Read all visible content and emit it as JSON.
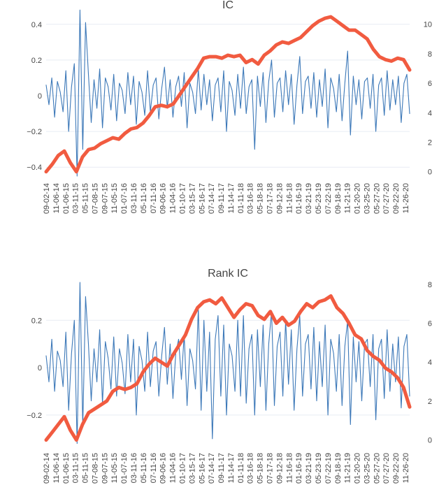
{
  "colors": {
    "ic_line": "#3c78b8",
    "cumulative_line": "#f15b40",
    "grid": "#e8ecf3",
    "text": "#444444"
  },
  "chart_data": [
    {
      "type": "line",
      "title": "IC",
      "xlabel": "",
      "ylabel": "",
      "x_tick_labels": [
        "09-02-14",
        "11-06-14",
        "01-06-15",
        "03-11-15",
        "05-11-15",
        "07-08-15",
        "09-07-15",
        "11-05-15",
        "01-07-16",
        "03-11-16",
        "05-11-16",
        "07-11-16",
        "09-06-16",
        "11-04-16",
        "01-10-17",
        "03-15-17",
        "05-16-17",
        "07-14-17",
        "09-11-17",
        "11-14-17",
        "01-11-18",
        "03-16-18",
        "05-18-18",
        "07-17-18",
        "09-12-18",
        "11-16-18",
        "01-16-19",
        "03-21-19",
        "05-23-19",
        "07-22-19",
        "09-18-19",
        "11-21-19",
        "01-20-20",
        "03-25-20",
        "05-27-20",
        "07-27-20",
        "09-22-20",
        "11-26-20"
      ],
      "ylim_left": [
        -0.45,
        0.45
      ],
      "yticks_left": [
        -0.4,
        -0.2,
        0,
        0.2,
        0.4
      ],
      "ytick_labels_left": [
        "−0.4",
        "−0.2",
        "0",
        "0.2",
        "0.4"
      ],
      "ylim_right": [
        -0.3,
        10.6
      ],
      "yticks_right": [
        0,
        2,
        4,
        6,
        8,
        10
      ],
      "ytick_labels_right": [
        "0",
        "2",
        "4",
        "6",
        "8",
        "10"
      ],
      "grid": true,
      "series": [
        {
          "axis": "left",
          "color": "#3c78b8",
          "note_values": "daily IC values, oscillating mostly within about -0.2 to 0.2",
          "peaks": [
            0.48,
            -0.45,
            0.41,
            -0.3,
            0.25
          ],
          "values": [
            0.06,
            -0.05,
            0.1,
            -0.12,
            0.08,
            0.02,
            -0.09,
            0.14,
            -0.2,
            0.05,
            0.18,
            -0.45,
            0.48,
            -0.3,
            0.41,
            0.12,
            -0.15,
            0.09,
            -0.07,
            0.15,
            -0.18,
            0.1,
            0.05,
            -0.08,
            0.12,
            -0.14,
            0.07,
            0.03,
            -0.1,
            0.13,
            -0.05,
            0.11,
            -0.16,
            0.08,
            0.02,
            -0.11,
            0.14,
            -0.09,
            0.06,
            0.1,
            -0.13,
            0.04,
            0.16,
            -0.07,
            0.09,
            -0.12,
            0.05,
            0.11,
            -0.06,
            0.13,
            -0.18,
            0.07,
            0.02,
            -0.1,
            0.15,
            -0.08,
            0.12,
            -0.05,
            0.09,
            -0.14,
            0.06,
            0.1,
            -0.09,
            0.14,
            -0.2,
            0.08,
            0.03,
            -0.11,
            0.12,
            -0.07,
            0.16,
            -0.1,
            0.05,
            0.09,
            -0.3,
            0.11,
            -0.06,
            0.13,
            -0.15,
            0.08,
            0.2,
            -0.12,
            0.07,
            0.1,
            -0.09,
            0.14,
            -0.05,
            0.12,
            -0.16,
            0.06,
            0.22,
            -0.1,
            0.08,
            0.11,
            -0.07,
            0.13,
            -0.12,
            0.09,
            -0.06,
            0.15,
            -0.18,
            0.1,
            0.04,
            -0.09,
            0.12,
            -0.14,
            0.07,
            0.25,
            -0.22,
            0.11,
            -0.05,
            0.09,
            -0.13,
            0.08,
            0.1,
            -0.07,
            0.12,
            -0.2,
            0.06,
            0.1,
            -0.11,
            0.14,
            -0.08,
            0.09,
            -0.05,
            0.11,
            -0.15,
            0.07,
            0.12,
            -0.1
          ]
        },
        {
          "axis": "right",
          "color": "#f15b40",
          "note_values": "cumulative IC",
          "values": [
            0.0,
            0.5,
            1.1,
            1.4,
            0.6,
            0.0,
            1.0,
            1.5,
            1.6,
            1.9,
            2.1,
            2.3,
            2.2,
            2.6,
            2.9,
            3.0,
            3.3,
            3.8,
            4.4,
            4.5,
            4.4,
            4.6,
            5.2,
            5.8,
            6.4,
            7.0,
            7.7,
            7.8,
            7.8,
            7.7,
            7.9,
            7.8,
            7.9,
            7.4,
            7.6,
            7.3,
            7.9,
            8.2,
            8.6,
            8.8,
            8.7,
            8.9,
            9.1,
            9.5,
            9.9,
            10.2,
            10.4,
            10.5,
            10.2,
            9.9,
            9.6,
            9.6,
            9.3,
            9.0,
            8.3,
            7.8,
            7.6,
            7.5,
            7.7,
            7.6,
            6.9
          ]
        }
      ]
    },
    {
      "type": "line",
      "title": "Rank IC",
      "xlabel": "",
      "ylabel": "",
      "x_tick_labels": [
        "09-02-14",
        "11-06-14",
        "01-06-15",
        "03-11-15",
        "05-11-15",
        "07-08-15",
        "09-07-15",
        "11-05-15",
        "01-07-16",
        "03-11-16",
        "05-11-16",
        "07-11-16",
        "09-06-16",
        "11-04-16",
        "01-10-17",
        "03-15-17",
        "05-16-17",
        "07-14-17",
        "09-11-17",
        "11-14-17",
        "01-11-18",
        "03-16-18",
        "05-18-18",
        "07-17-18",
        "09-12-18",
        "11-16-18",
        "01-16-19",
        "03-21-19",
        "05-23-19",
        "07-22-19",
        "09-18-19",
        "11-21-19",
        "01-20-20",
        "03-25-20",
        "05-27-20",
        "07-27-20",
        "09-22-20",
        "11-26-20"
      ],
      "ylim_left": [
        -0.33,
        0.36
      ],
      "yticks_left": [
        -0.2,
        0,
        0.2
      ],
      "ytick_labels_left": [
        "−0.2",
        "0",
        "0.2"
      ],
      "ylim_right": [
        -0.3,
        8.1
      ],
      "yticks_right": [
        0,
        2,
        4,
        6,
        8
      ],
      "ytick_labels_right": [
        "0",
        "2",
        "4",
        "6",
        "8"
      ],
      "grid": true,
      "series": [
        {
          "axis": "left",
          "color": "#3c78b8",
          "note_values": "daily rank IC values",
          "peaks": [
            0.36,
            -0.32,
            0.3,
            -0.3,
            0.25
          ],
          "values": [
            0.05,
            -0.06,
            0.12,
            -0.1,
            0.07,
            0.03,
            -0.08,
            0.15,
            -0.18,
            0.06,
            0.2,
            -0.32,
            0.36,
            -0.25,
            0.3,
            0.1,
            -0.14,
            0.08,
            -0.06,
            0.16,
            -0.15,
            0.11,
            0.04,
            -0.09,
            0.13,
            -0.12,
            0.08,
            0.02,
            -0.11,
            0.14,
            -0.06,
            0.12,
            -0.2,
            0.09,
            0.03,
            -0.1,
            0.15,
            -0.08,
            0.07,
            0.11,
            -0.12,
            0.05,
            0.17,
            -0.07,
            0.1,
            -0.13,
            0.06,
            0.12,
            -0.05,
            0.14,
            -0.16,
            0.08,
            0.03,
            -0.09,
            0.25,
            -0.18,
            0.2,
            -0.1,
            0.15,
            -0.3,
            0.12,
            0.22,
            -0.12,
            0.18,
            -0.2,
            0.1,
            0.05,
            -0.1,
            0.2,
            -0.12,
            0.22,
            -0.15,
            0.08,
            0.14,
            -0.2,
            0.16,
            -0.08,
            0.18,
            -0.18,
            0.1,
            0.24,
            -0.16,
            0.09,
            0.15,
            -0.12,
            0.2,
            -0.07,
            0.16,
            -0.18,
            0.08,
            0.22,
            -0.12,
            0.1,
            0.14,
            -0.09,
            0.17,
            -0.14,
            0.11,
            -0.08,
            0.18,
            -0.2,
            0.12,
            0.06,
            -0.1,
            0.14,
            -0.16,
            0.09,
            0.2,
            -0.24,
            0.13,
            -0.06,
            0.11,
            -0.14,
            0.1,
            0.12,
            -0.08,
            0.14,
            -0.22,
            0.08,
            0.12,
            -0.13,
            0.16,
            -0.1,
            0.1,
            -0.06,
            0.13,
            -0.17,
            0.09,
            0.14,
            -0.12
          ]
        },
        {
          "axis": "right",
          "color": "#f15b40",
          "note_values": "cumulative rank IC",
          "values": [
            0.0,
            0.4,
            0.8,
            1.2,
            0.5,
            0.0,
            0.8,
            1.4,
            1.6,
            1.8,
            2.0,
            2.5,
            2.7,
            2.6,
            2.7,
            2.9,
            3.5,
            3.9,
            4.2,
            4.0,
            3.8,
            4.4,
            4.9,
            5.4,
            6.2,
            6.8,
            7.1,
            7.2,
            7.0,
            7.3,
            6.8,
            6.3,
            6.7,
            7.0,
            6.9,
            6.4,
            6.2,
            6.6,
            6.0,
            6.3,
            5.9,
            6.1,
            6.6,
            7.0,
            6.8,
            7.1,
            7.2,
            7.4,
            6.8,
            6.5,
            6.0,
            5.4,
            5.2,
            4.6,
            4.3,
            4.1,
            3.7,
            3.5,
            3.2,
            2.7,
            1.7
          ]
        }
      ]
    }
  ]
}
